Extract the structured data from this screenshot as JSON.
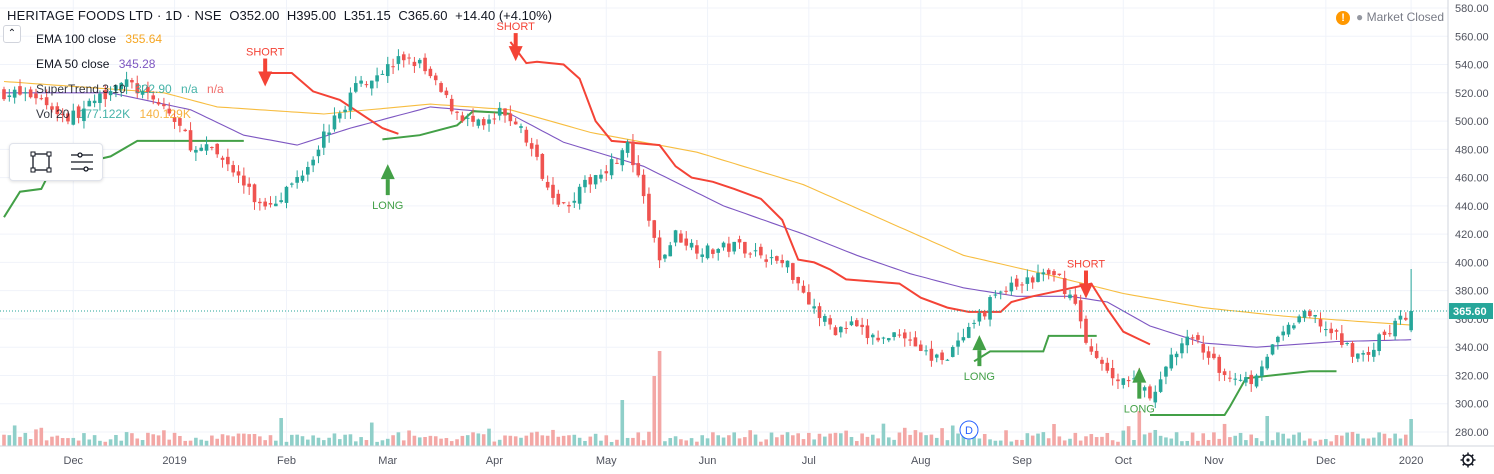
{
  "header": {
    "symbol": "HERITAGE FOODS LTD · 1D · NSE",
    "open": "O352.00",
    "high": "H395.00",
    "low": "L351.15",
    "close": "C365.60",
    "change": "+14.40 (+4.10%)"
  },
  "indicators": [
    {
      "name": "EMA 100 close",
      "value": "355.64",
      "color": "#f5a623"
    },
    {
      "name": "EMA 50 close",
      "value": "345.28",
      "color": "#7e57c2"
    },
    {
      "name": "SuperTrend 3 10",
      "value": "322.90",
      "value2": "n/a",
      "value3": "n/a",
      "color": "#26a69a"
    },
    {
      "name": "Vol 20",
      "value": "177.122K",
      "value2": "140.129K",
      "color": "#26a69a"
    }
  ],
  "market_status": {
    "text": "Market Closed",
    "alert": "!"
  },
  "colors": {
    "up": "#26a69a",
    "down": "#ef5350",
    "ema100": "#f7bd40",
    "ema50": "#7e57c2",
    "st_up": "#43a047",
    "st_down": "#f44336",
    "vol_up": "#8fcfc9",
    "vol_down": "#f3a7a5",
    "grid": "#f0f3fa",
    "axis_text": "#50535e"
  },
  "chart_data": {
    "type": "candlestick",
    "y_axis": {
      "min": 270,
      "max": 585,
      "ticks": [
        280,
        300,
        320,
        340,
        360,
        380,
        400,
        420,
        440,
        460,
        480,
        500,
        520,
        540,
        560,
        580
      ],
      "last_price_label": "365.60"
    },
    "x_axis": {
      "labels": [
        "Dec",
        "2019",
        "Feb",
        "Mar",
        "Apr",
        "May",
        "Jun",
        "Jul",
        "Aug",
        "Sep",
        "Oct",
        "Nov",
        "Dec",
        "2020"
      ]
    },
    "annotations": {
      "short_label": "SHORT",
      "long_label": "LONG",
      "event_badge": "D"
    },
    "price_knots": [
      [
        0,
        520
      ],
      [
        6,
        518
      ],
      [
        12,
        502
      ],
      [
        15,
        508
      ],
      [
        18,
        516
      ],
      [
        21,
        528
      ],
      [
        24,
        525
      ],
      [
        27,
        516
      ],
      [
        30,
        510
      ],
      [
        33,
        495
      ],
      [
        36,
        478
      ],
      [
        39,
        480
      ],
      [
        42,
        470
      ],
      [
        45,
        455
      ],
      [
        48,
        440
      ],
      [
        51,
        445
      ],
      [
        54,
        455
      ],
      [
        57,
        470
      ],
      [
        60,
        490
      ],
      [
        63,
        505
      ],
      [
        66,
        525
      ],
      [
        69,
        532
      ],
      [
        72,
        538
      ],
      [
        75,
        545
      ],
      [
        78,
        540
      ],
      [
        81,
        525
      ],
      [
        84,
        510
      ],
      [
        87,
        500
      ],
      [
        90,
        495
      ],
      [
        93,
        505
      ],
      [
        96,
        500
      ],
      [
        99,
        480
      ],
      [
        102,
        455
      ],
      [
        105,
        440
      ],
      [
        108,
        450
      ],
      [
        111,
        462
      ],
      [
        114,
        470
      ],
      [
        117,
        482
      ],
      [
        120,
        445
      ],
      [
        123,
        400
      ],
      [
        126,
        420
      ],
      [
        129,
        412
      ],
      [
        132,
        408
      ],
      [
        135,
        410
      ],
      [
        138,
        412
      ],
      [
        141,
        408
      ],
      [
        144,
        402
      ],
      [
        147,
        398
      ],
      [
        150,
        380
      ],
      [
        153,
        362
      ],
      [
        156,
        352
      ],
      [
        159,
        355
      ],
      [
        162,
        348
      ],
      [
        165,
        345
      ],
      [
        168,
        352
      ],
      [
        171,
        342
      ],
      [
        174,
        332
      ],
      [
        177,
        335
      ],
      [
        180,
        345
      ],
      [
        183,
        360
      ],
      [
        186,
        378
      ],
      [
        189,
        382
      ],
      [
        192,
        386
      ],
      [
        195,
        392
      ],
      [
        198,
        388
      ],
      [
        201,
        370
      ],
      [
        204,
        335
      ],
      [
        207,
        322
      ],
      [
        210,
        318
      ],
      [
        213,
        314
      ],
      [
        216,
        305
      ],
      [
        219,
        335
      ],
      [
        222,
        345
      ],
      [
        225,
        340
      ],
      [
        228,
        322
      ],
      [
        231,
        320
      ],
      [
        234,
        317
      ],
      [
        237,
        335
      ],
      [
        240,
        348
      ],
      [
        243,
        362
      ],
      [
        246,
        360
      ],
      [
        249,
        350
      ],
      [
        252,
        340
      ],
      [
        255,
        333
      ],
      [
        258,
        345
      ],
      [
        261,
        356
      ],
      [
        264,
        365.6
      ]
    ],
    "ema100_knots": [
      [
        0,
        528
      ],
      [
        30,
        520
      ],
      [
        40,
        510
      ],
      [
        60,
        505
      ],
      [
        80,
        512
      ],
      [
        95,
        508
      ],
      [
        110,
        492
      ],
      [
        130,
        478
      ],
      [
        150,
        455
      ],
      [
        165,
        430
      ],
      [
        180,
        405
      ],
      [
        195,
        392
      ],
      [
        210,
        378
      ],
      [
        225,
        368
      ],
      [
        240,
        362
      ],
      [
        264,
        355.64
      ]
    ],
    "ema50_knots": [
      [
        0,
        520
      ],
      [
        20,
        520
      ],
      [
        35,
        508
      ],
      [
        45,
        490
      ],
      [
        55,
        483
      ],
      [
        65,
        495
      ],
      [
        80,
        510
      ],
      [
        95,
        505
      ],
      [
        105,
        485
      ],
      [
        120,
        468
      ],
      [
        135,
        440
      ],
      [
        150,
        420
      ],
      [
        160,
        405
      ],
      [
        170,
        392
      ],
      [
        180,
        382
      ],
      [
        190,
        376
      ],
      [
        200,
        376
      ],
      [
        207,
        372
      ],
      [
        215,
        355
      ],
      [
        225,
        343
      ],
      [
        235,
        340
      ],
      [
        250,
        344
      ],
      [
        264,
        345.28
      ]
    ],
    "supertrend": {
      "up_segments": [
        [
          [
            0,
            432
          ],
          [
            3,
            450
          ],
          [
            7,
            452
          ],
          [
            9,
            467
          ],
          [
            12,
            468
          ],
          [
            20,
            475
          ],
          [
            25,
            486
          ],
          [
            40,
            486
          ],
          [
            45,
            486
          ]
        ],
        [
          [
            71,
            487
          ],
          [
            78,
            490
          ],
          [
            85,
            497
          ],
          [
            88,
            507
          ],
          [
            93,
            506
          ],
          [
            95,
            505
          ]
        ],
        [
          [
            182,
            330
          ],
          [
            185,
            337
          ],
          [
            195,
            337
          ],
          [
            196,
            348
          ],
          [
            205,
            348
          ]
        ],
        [
          [
            215,
            292
          ],
          [
            225,
            292
          ],
          [
            229,
            292
          ],
          [
            230,
            298
          ],
          [
            233,
            318
          ],
          [
            245,
            323
          ],
          [
            250,
            323
          ]
        ]
      ],
      "down_segments": [
        [
          [
            48,
            534
          ],
          [
            54,
            534
          ],
          [
            58,
            521
          ],
          [
            63,
            515
          ],
          [
            71,
            495
          ],
          [
            74,
            491
          ]
        ],
        [
          [
            95,
            556
          ],
          [
            98,
            541
          ],
          [
            100,
            542
          ],
          [
            105,
            540
          ],
          [
            108,
            530
          ],
          [
            111,
            500
          ],
          [
            114,
            486
          ],
          [
            123,
            483
          ],
          [
            126,
            468
          ],
          [
            129,
            460
          ],
          [
            133,
            457
          ],
          [
            137,
            452
          ],
          [
            142,
            445
          ],
          [
            146,
            430
          ],
          [
            149,
            402
          ],
          [
            152,
            400
          ],
          [
            155,
            395
          ],
          [
            158,
            388
          ],
          [
            168,
            385
          ],
          [
            172,
            375
          ],
          [
            177,
            368
          ],
          [
            181,
            365
          ],
          [
            187,
            365
          ],
          [
            189,
            372
          ],
          [
            193,
            376
          ],
          [
            198,
            380
          ],
          [
            204,
            385
          ],
          [
            207,
            367
          ],
          [
            210,
            351
          ],
          [
            215,
            342
          ]
        ]
      ]
    },
    "signals": [
      {
        "type": "short",
        "i": 49,
        "price": 540
      },
      {
        "type": "short",
        "i": 96,
        "price": 558
      },
      {
        "type": "short",
        "i": 203,
        "price": 390
      },
      {
        "type": "long",
        "i": 72,
        "price": 466
      },
      {
        "type": "long",
        "i": 183,
        "price": 345
      },
      {
        "type": "long",
        "i": 213,
        "price": 322
      }
    ]
  }
}
